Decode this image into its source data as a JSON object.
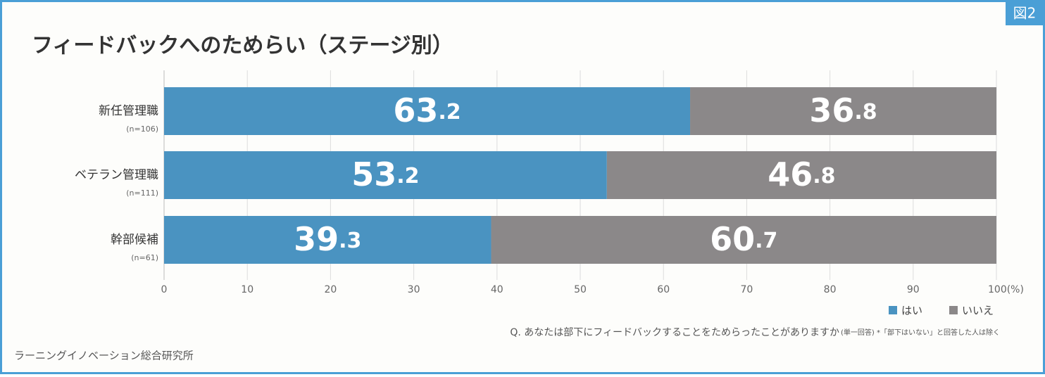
{
  "figure_badge": "図2",
  "chart_data": {
    "type": "stacked_bar_horizontal",
    "title": "フィードバックへのためらい（ステージ別）",
    "categories": [
      "新任管理職",
      "ベテラン管理職",
      "幹部候補"
    ],
    "sample_sizes": [
      "(n=106)",
      "(n=111)",
      "(n=61)"
    ],
    "series": [
      {
        "name": "はい",
        "color": "#4a93c1",
        "values": [
          63.2,
          53.2,
          39.3
        ]
      },
      {
        "name": "いいえ",
        "color": "#8b8889",
        "values": [
          36.8,
          46.8,
          60.7
        ]
      }
    ],
    "xlim": [
      0,
      100
    ],
    "xticks": [
      0,
      10,
      20,
      30,
      40,
      50,
      60,
      70,
      80,
      90,
      {
        "value": 100,
        "label": "100(%)"
      }
    ],
    "grid": true,
    "legend": "bottom-right",
    "question": "Q. あなたは部下にフィードバックすることをためらったことがありますか",
    "question_note": "(単一回答) *「部下はいない」と回答した人は除く",
    "source": "ラーニングイノベーション総合研究所"
  }
}
